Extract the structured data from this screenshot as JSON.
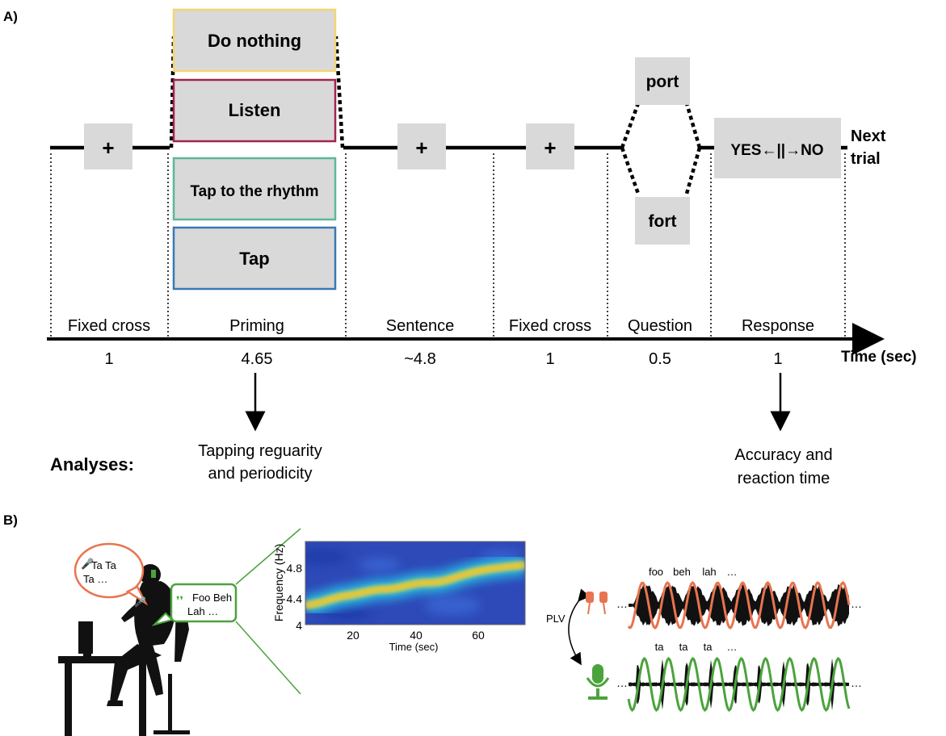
{
  "panel_a": {
    "label": "A)",
    "priming_options": [
      "Do nothing",
      "Listen",
      "Tap to the rhythm",
      "Tap"
    ],
    "priming_colors": [
      "#f5d572",
      "#a3234e",
      "#5bb89a",
      "#3a78b5"
    ],
    "cross_symbol": "+",
    "question_words": [
      "port",
      "fort"
    ],
    "response_prompt": "YES←||→NO",
    "next_trial": [
      "Next",
      "trial"
    ],
    "phases": [
      {
        "name": "Fixed cross",
        "duration": "1"
      },
      {
        "name": "Priming",
        "duration": "4.65"
      },
      {
        "name": "Sentence",
        "duration": "~4.8"
      },
      {
        "name": "Fixed cross",
        "duration": "1"
      },
      {
        "name": "Question",
        "duration": "0.5"
      },
      {
        "name": "Response",
        "duration": "1"
      }
    ],
    "time_axis_label": "Time (sec)",
    "analyses_label": "Analyses:",
    "analysis_left": [
      "Tapping reguarity",
      "and periodicity"
    ],
    "analysis_right": [
      "Accuracy and",
      "reaction time"
    ]
  },
  "panel_b": {
    "label": "B)",
    "speech_red": [
      "Ta Ta",
      "Ta …"
    ],
    "speech_green": [
      "Foo Beh",
      "Lah …"
    ],
    "heatmap": {
      "ylabel": "Frequency (Hz)",
      "xlabel": "Time (sec)",
      "yticks": [
        "4.8",
        "4.4",
        "4"
      ],
      "xticks": [
        "20",
        "40",
        "60"
      ]
    },
    "plv_label": "PLV",
    "syllables_top": [
      "foo",
      "beh",
      "lah",
      "…"
    ],
    "syllables_bottom": [
      "ta",
      "ta",
      "ta",
      "…"
    ],
    "colors": {
      "orange": "#e8744f",
      "green": "#4ba33c",
      "heat_bg": "#2e49b8"
    }
  }
}
